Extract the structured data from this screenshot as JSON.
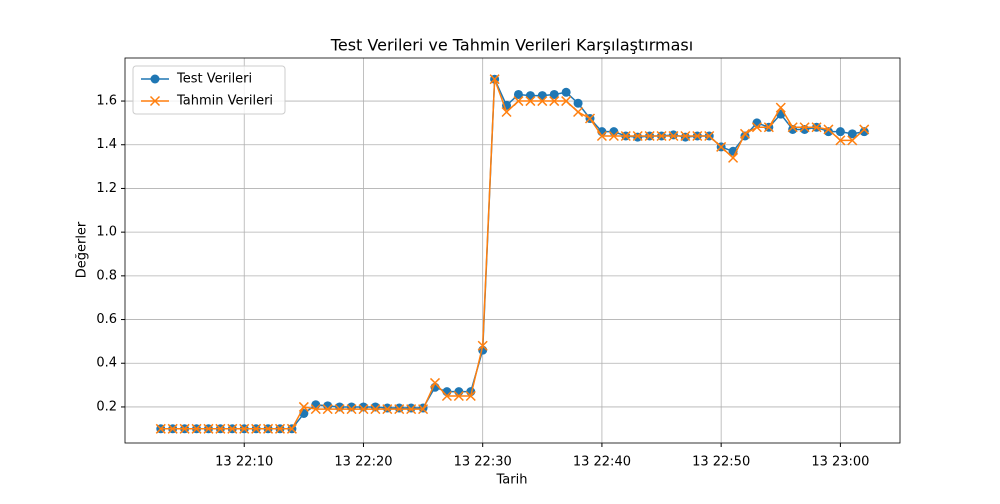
{
  "chart_data": {
    "type": "line",
    "title": "Test Verileri ve Tahmin Verileri Karşılaştırması",
    "xlabel": "Tarih",
    "ylabel": "Değerler",
    "x": [
      "13 22:03",
      "13 22:04",
      "13 22:05",
      "13 22:06",
      "13 22:07",
      "13 22:08",
      "13 22:09",
      "13 22:10",
      "13 22:11",
      "13 22:12",
      "13 22:13",
      "13 22:14",
      "13 22:15",
      "13 22:16",
      "13 22:17",
      "13 22:18",
      "13 22:19",
      "13 22:20",
      "13 22:21",
      "13 22:22",
      "13 22:23",
      "13 22:24",
      "13 22:25",
      "13 22:26",
      "13 22:27",
      "13 22:28",
      "13 22:29",
      "13 22:30",
      "13 22:31",
      "13 22:32",
      "13 22:33",
      "13 22:34",
      "13 22:35",
      "13 22:36",
      "13 22:37",
      "13 22:38",
      "13 22:39",
      "13 22:40",
      "13 22:41",
      "13 22:42",
      "13 22:43",
      "13 22:44",
      "13 22:45",
      "13 22:46",
      "13 22:47",
      "13 22:48",
      "13 22:49",
      "13 22:50",
      "13 22:51",
      "13 22:52",
      "13 22:53",
      "13 22:54",
      "13 22:55",
      "13 22:56",
      "13 22:57",
      "13 22:58",
      "13 22:59",
      "13 23:00",
      "13 23:01",
      "13 23:02"
    ],
    "series": [
      {
        "name": "Test Verileri",
        "color": "#1f77b4",
        "marker": "o",
        "values": [
          0.1,
          0.1,
          0.1,
          0.1,
          0.1,
          0.1,
          0.1,
          0.1,
          0.1,
          0.1,
          0.1,
          0.1,
          0.17,
          0.21,
          0.205,
          0.2,
          0.2,
          0.2,
          0.2,
          0.195,
          0.195,
          0.195,
          0.195,
          0.29,
          0.27,
          0.27,
          0.27,
          0.46,
          1.7,
          1.58,
          1.63,
          1.625,
          1.625,
          1.63,
          1.64,
          1.59,
          1.52,
          1.46,
          1.46,
          1.44,
          1.435,
          1.44,
          1.44,
          1.445,
          1.435,
          1.44,
          1.44,
          1.39,
          1.37,
          1.44,
          1.5,
          1.48,
          1.54,
          1.47,
          1.47,
          1.48,
          1.46,
          1.46,
          1.45,
          1.46
        ]
      },
      {
        "name": "Tahmin Verileri",
        "color": "#ff7f0e",
        "marker": "x",
        "values": [
          0.1,
          0.1,
          0.1,
          0.1,
          0.1,
          0.1,
          0.1,
          0.1,
          0.1,
          0.1,
          0.1,
          0.1,
          0.2,
          0.19,
          0.19,
          0.19,
          0.19,
          0.19,
          0.19,
          0.19,
          0.19,
          0.19,
          0.19,
          0.31,
          0.25,
          0.25,
          0.25,
          0.48,
          1.7,
          1.55,
          1.6,
          1.6,
          1.6,
          1.6,
          1.6,
          1.55,
          1.52,
          1.44,
          1.44,
          1.44,
          1.44,
          1.44,
          1.44,
          1.44,
          1.44,
          1.44,
          1.44,
          1.39,
          1.34,
          1.45,
          1.48,
          1.48,
          1.57,
          1.48,
          1.48,
          1.48,
          1.47,
          1.42,
          1.42,
          1.47
        ]
      }
    ],
    "xlim": [
      "13 22:00",
      "13 23:05"
    ],
    "xticks": [
      "13 22:10",
      "13 22:20",
      "13 22:30",
      "13 22:40",
      "13 22:50",
      "13 23:00"
    ],
    "ylim": [
      0.035,
      1.797
    ],
    "yticks": [
      0.2,
      0.4,
      0.6,
      0.8,
      {
        "value": 1,
        "label": "1.0"
      },
      1.2,
      1.4,
      1.6
    ],
    "grid": true,
    "legend": "upper left"
  }
}
